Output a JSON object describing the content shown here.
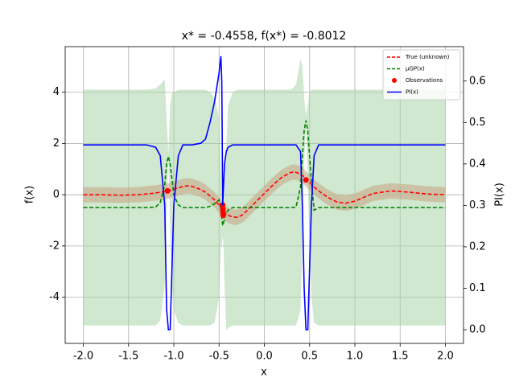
{
  "chart_data": {
    "type": "line",
    "title": "x* = -0.4558, f(x*) = -0.8012",
    "x_label": "x",
    "y_label": "f(x)",
    "y2_label": "PI(x)",
    "xlim": [
      -2.2,
      2.2
    ],
    "ylim": [
      -5.8,
      5.78
    ],
    "y2lim": [
      -0.033,
      0.683
    ],
    "xticks": [
      {
        "value": -2,
        "label": "-2.0"
      },
      {
        "value": -1.5,
        "label": "-1.5"
      },
      {
        "value": -1,
        "label": "-1.0"
      },
      {
        "value": -0.5,
        "label": "-0.5"
      },
      {
        "value": 0,
        "label": "0.0"
      },
      {
        "value": 0.5,
        "label": "0.5"
      },
      {
        "value": 1,
        "label": "1.0"
      },
      {
        "value": 1.5,
        "label": "1.5"
      },
      {
        "value": 2,
        "label": "2.0"
      }
    ],
    "yticks": [
      -4,
      -2,
      0,
      2,
      4
    ],
    "y2ticks": [
      {
        "value": 0,
        "label": "0.0"
      },
      {
        "value": 0.1,
        "label": "0.1"
      },
      {
        "value": 0.2,
        "label": "0.2"
      },
      {
        "value": 0.3,
        "label": "0.3"
      },
      {
        "value": 0.4,
        "label": "0.4"
      },
      {
        "value": 0.5,
        "label": "0.5"
      },
      {
        "value": 0.6,
        "label": "0.6"
      }
    ],
    "grid": true,
    "legend": "upper right",
    "x": [
      -2.0,
      -1.8,
      -1.6,
      -1.4,
      -1.3,
      -1.2,
      -1.15,
      -1.1,
      -1.08,
      -1.06,
      -1.04,
      -1.02,
      -1.0,
      -0.95,
      -0.9,
      -0.85,
      -0.8,
      -0.7,
      -0.65,
      -0.6,
      -0.55,
      -0.5,
      -0.48,
      -0.47,
      -0.46,
      -0.45,
      -0.44,
      -0.42,
      -0.4,
      -0.35,
      -0.3,
      -0.25,
      -0.2,
      -0.1,
      0,
      0.1,
      0.2,
      0.3,
      0.35,
      0.4,
      0.42,
      0.44,
      0.46,
      0.48,
      0.5,
      0.52,
      0.55,
      0.6,
      0.7,
      0.8,
      0.9,
      1.0,
      1.2,
      1.4,
      1.6,
      1.8,
      2.0
    ],
    "bands": [
      {
        "color": "#a8d5a8",
        "opacity": 0.55,
        "upper": [
          4.1,
          4.1,
          4.1,
          4.1,
          4.1,
          4.15,
          4.3,
          4.5,
          3.0,
          1.6,
          3.5,
          4.0,
          4.0,
          4.1,
          4.1,
          4.1,
          4.1,
          4.1,
          4.1,
          4.0,
          3.8,
          3.0,
          1.0,
          0.0,
          -0.8,
          -0.4,
          0.5,
          2.0,
          3.5,
          4.0,
          4.1,
          4.1,
          4.1,
          4.1,
          4.1,
          4.1,
          4.1,
          4.1,
          4.3,
          5.3,
          5.0,
          3.8,
          3.1,
          3.5,
          4.0,
          4.1,
          4.1,
          4.1,
          4.1,
          4.1,
          4.1,
          4.1,
          4.1,
          4.1,
          4.1,
          4.1,
          4.1
        ],
        "lower": [
          -5.1,
          -5.1,
          -5.1,
          -5.1,
          -5.1,
          -5.1,
          -4.9,
          -3.5,
          -0.6,
          1.3,
          -1.5,
          -3.5,
          -4.5,
          -5.0,
          -5.1,
          -5.1,
          -5.1,
          -5.1,
          -5.1,
          -5.1,
          -5.0,
          -4.0,
          -2.0,
          -2.0,
          -1.6,
          -2.0,
          -3.5,
          -5.3,
          -5.2,
          -5.1,
          -5.1,
          -5.1,
          -5.1,
          -5.1,
          -5.1,
          -5.1,
          -5.1,
          -5.1,
          -5.1,
          -4.5,
          -2.0,
          1.2,
          2.7,
          0.5,
          -2.0,
          -4.0,
          -5.0,
          -5.1,
          -5.1,
          -5.1,
          -5.1,
          -5.1,
          -5.1,
          -5.1,
          -5.1,
          -5.1,
          -5.1
        ]
      },
      {
        "color": "#c8a88a",
        "opacity": 0.6,
        "upper": [
          0.3,
          0.3,
          0.28,
          0.3,
          0.33,
          0.37,
          0.4,
          0.42,
          0.44,
          0.45,
          0.47,
          0.5,
          0.52,
          0.57,
          0.62,
          0.65,
          0.63,
          0.5,
          0.4,
          0.25,
          0.1,
          -0.1,
          -0.2,
          -0.25,
          -0.3,
          -0.35,
          -0.4,
          -0.45,
          -0.5,
          -0.57,
          -0.58,
          -0.5,
          -0.35,
          0.0,
          0.35,
          0.7,
          1.0,
          1.18,
          1.18,
          1.1,
          1.05,
          1.0,
          0.92,
          0.85,
          0.78,
          0.7,
          0.6,
          0.45,
          0.2,
          0.02,
          -0.03,
          0.05,
          0.35,
          0.45,
          0.4,
          0.33,
          0.3
        ],
        "lower": [
          -0.3,
          -0.3,
          -0.32,
          -0.3,
          -0.27,
          -0.23,
          -0.2,
          -0.18,
          -0.16,
          -0.15,
          -0.13,
          -0.1,
          -0.08,
          -0.03,
          0.02,
          0.05,
          0.03,
          -0.1,
          -0.2,
          -0.35,
          -0.5,
          -0.7,
          -0.8,
          -0.85,
          -0.9,
          -0.95,
          -1.0,
          -1.05,
          -1.1,
          -1.17,
          -1.18,
          -1.1,
          -0.95,
          -0.6,
          -0.25,
          0.1,
          0.4,
          0.58,
          0.58,
          0.5,
          0.45,
          0.4,
          0.32,
          0.25,
          0.18,
          0.1,
          0.0,
          -0.15,
          -0.4,
          -0.58,
          -0.63,
          -0.55,
          -0.25,
          -0.15,
          -0.2,
          -0.27,
          -0.3
        ]
      }
    ],
    "series": [
      {
        "name": "True (unknown)",
        "color": "#ff0000",
        "style": "dashed",
        "axis": "y",
        "values": [
          0.0,
          0.0,
          -0.02,
          0.0,
          0.03,
          0.07,
          0.1,
          0.12,
          0.14,
          0.15,
          0.17,
          0.2,
          0.22,
          0.27,
          0.32,
          0.35,
          0.33,
          0.2,
          0.1,
          -0.05,
          -0.2,
          -0.4,
          -0.5,
          -0.55,
          -0.6,
          -0.65,
          -0.7,
          -0.75,
          -0.8,
          -0.87,
          -0.88,
          -0.8,
          -0.65,
          -0.3,
          0.05,
          0.4,
          0.7,
          0.88,
          0.88,
          0.8,
          0.75,
          0.7,
          0.62,
          0.55,
          0.48,
          0.4,
          0.3,
          0.15,
          -0.1,
          -0.28,
          -0.33,
          -0.25,
          0.05,
          0.15,
          0.1,
          0.03,
          0.0
        ]
      },
      {
        "name": "μGP(x)",
        "color": "#008000",
        "style": "dashed",
        "axis": "y",
        "values": [
          -0.5,
          -0.5,
          -0.5,
          -0.5,
          -0.5,
          -0.48,
          -0.3,
          0.4,
          1.2,
          1.5,
          1.2,
          0.6,
          0.0,
          -0.4,
          -0.5,
          -0.5,
          -0.5,
          -0.5,
          -0.5,
          -0.45,
          -0.35,
          -0.2,
          -0.6,
          -0.9,
          -1.2,
          -1.1,
          -0.9,
          -0.7,
          -0.6,
          -0.5,
          -0.5,
          -0.5,
          -0.5,
          -0.5,
          -0.5,
          -0.5,
          -0.5,
          -0.5,
          -0.48,
          0.3,
          1.5,
          2.5,
          2.9,
          2.5,
          1.5,
          0.5,
          -0.6,
          -0.5,
          -0.5,
          -0.5,
          -0.5,
          -0.5,
          -0.5,
          -0.5,
          -0.5,
          -0.5,
          -0.5
        ]
      },
      {
        "name": "Observations",
        "color": "#ff0000",
        "style": "scatter",
        "axis": "y",
        "x": [
          -1.07,
          -0.46,
          -0.458,
          -0.457,
          -0.4558,
          0.46
        ],
        "values": [
          0.15,
          -0.4,
          -0.55,
          -0.68,
          -0.8012,
          0.58
        ]
      },
      {
        "name": "PI(x)",
        "color": "#0000ff",
        "style": "solid",
        "axis": "y2",
        "values": [
          0.446,
          0.446,
          0.446,
          0.446,
          0.446,
          0.44,
          0.42,
          0.3,
          0.05,
          0.0,
          0.0,
          0.15,
          0.3,
          0.42,
          0.446,
          0.446,
          0.446,
          0.45,
          0.46,
          0.5,
          0.55,
          0.62,
          0.66,
          0.6,
          0.3,
          0.35,
          0.4,
          0.43,
          0.44,
          0.446,
          0.446,
          0.446,
          0.446,
          0.446,
          0.446,
          0.446,
          0.446,
          0.446,
          0.446,
          0.43,
          0.3,
          0.1,
          0.0,
          0.0,
          0.15,
          0.3,
          0.42,
          0.446,
          0.446,
          0.446,
          0.446,
          0.446,
          0.446,
          0.446,
          0.446,
          0.446,
          0.446
        ]
      }
    ]
  }
}
